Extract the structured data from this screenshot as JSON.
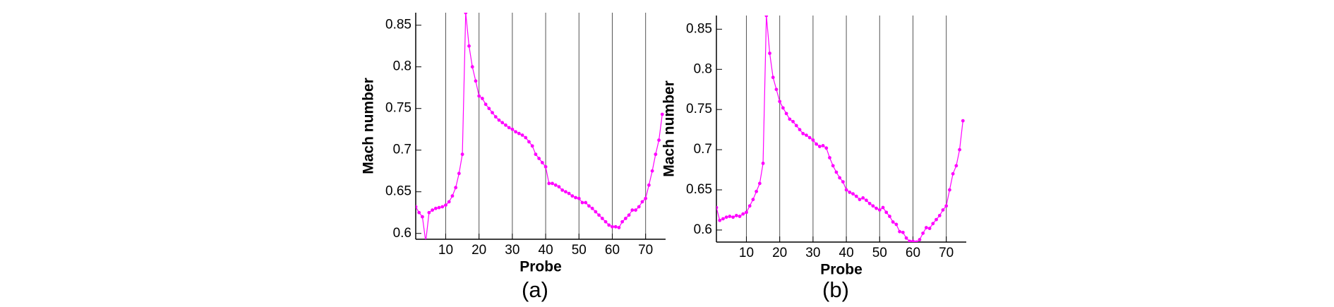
{
  "chart_data": [
    {
      "type": "line",
      "caption": "(a)",
      "xlabel": "Probe",
      "ylabel": "Mach number",
      "color": "#ff00ff",
      "xgrid": true,
      "xlim": [
        1,
        76
      ],
      "ylim": [
        0.593,
        0.865
      ],
      "xticks": [
        10,
        20,
        30,
        40,
        50,
        60,
        70
      ],
      "yticks": [
        0.6,
        0.65,
        0.7,
        0.75,
        0.8,
        0.85
      ],
      "x": [
        1,
        2,
        3,
        4,
        5,
        6,
        7,
        8,
        9,
        10,
        11,
        12,
        13,
        14,
        15,
        16,
        17,
        18,
        19,
        20,
        21,
        22,
        23,
        24,
        25,
        26,
        27,
        28,
        29,
        30,
        31,
        32,
        33,
        34,
        35,
        36,
        37,
        38,
        39,
        40,
        41,
        42,
        43,
        44,
        45,
        46,
        47,
        48,
        49,
        50,
        51,
        52,
        53,
        54,
        55,
        56,
        57,
        58,
        59,
        60,
        61,
        62,
        63,
        64,
        65,
        66,
        67,
        68,
        69,
        70,
        71,
        72,
        73,
        74,
        75
      ],
      "values": [
        0.632,
        0.625,
        0.62,
        0.59,
        0.625,
        0.628,
        0.63,
        0.631,
        0.632,
        0.634,
        0.638,
        0.645,
        0.655,
        0.672,
        0.695,
        0.865,
        0.825,
        0.8,
        0.783,
        0.765,
        0.762,
        0.755,
        0.75,
        0.745,
        0.74,
        0.736,
        0.733,
        0.73,
        0.727,
        0.725,
        0.722,
        0.72,
        0.718,
        0.715,
        0.71,
        0.705,
        0.695,
        0.69,
        0.685,
        0.68,
        0.66,
        0.66,
        0.658,
        0.656,
        0.652,
        0.65,
        0.648,
        0.645,
        0.643,
        0.642,
        0.637,
        0.637,
        0.633,
        0.63,
        0.626,
        0.622,
        0.618,
        0.614,
        0.61,
        0.608,
        0.608,
        0.607,
        0.614,
        0.618,
        0.622,
        0.628,
        0.628,
        0.632,
        0.638,
        0.642,
        0.658,
        0.675,
        0.695,
        0.712,
        0.743
      ]
    },
    {
      "type": "line",
      "caption": "(b)",
      "xlabel": "Probe",
      "ylabel": "Mach number",
      "color": "#ff00ff",
      "xgrid": true,
      "xlim": [
        1,
        76
      ],
      "ylim": [
        0.585,
        0.867
      ],
      "xticks": [
        10,
        20,
        30,
        40,
        50,
        60,
        70
      ],
      "yticks": [
        0.6,
        0.65,
        0.7,
        0.75,
        0.8,
        0.85
      ],
      "x": [
        1,
        2,
        3,
        4,
        5,
        6,
        7,
        8,
        9,
        10,
        11,
        12,
        13,
        14,
        15,
        16,
        17,
        18,
        19,
        20,
        21,
        22,
        23,
        24,
        25,
        26,
        27,
        28,
        29,
        30,
        31,
        32,
        33,
        34,
        35,
        36,
        37,
        38,
        39,
        40,
        41,
        42,
        43,
        44,
        45,
        46,
        47,
        48,
        49,
        50,
        51,
        52,
        53,
        54,
        55,
        56,
        57,
        58,
        59,
        60,
        61,
        62,
        63,
        64,
        65,
        66,
        67,
        68,
        69,
        70,
        71,
        72,
        73,
        74,
        75
      ],
      "values": [
        0.628,
        0.612,
        0.614,
        0.616,
        0.617,
        0.616,
        0.618,
        0.617,
        0.62,
        0.622,
        0.63,
        0.638,
        0.648,
        0.658,
        0.683,
        0.867,
        0.82,
        0.79,
        0.775,
        0.76,
        0.752,
        0.745,
        0.738,
        0.735,
        0.73,
        0.725,
        0.72,
        0.718,
        0.715,
        0.712,
        0.707,
        0.704,
        0.705,
        0.702,
        0.69,
        0.68,
        0.672,
        0.665,
        0.66,
        0.65,
        0.647,
        0.645,
        0.642,
        0.638,
        0.64,
        0.637,
        0.633,
        0.63,
        0.627,
        0.625,
        0.628,
        0.622,
        0.617,
        0.61,
        0.607,
        0.598,
        0.597,
        0.59,
        0.586,
        0.586,
        0.585,
        0.588,
        0.596,
        0.603,
        0.602,
        0.608,
        0.613,
        0.618,
        0.625,
        0.63,
        0.65,
        0.67,
        0.68,
        0.7,
        0.736
      ]
    }
  ]
}
